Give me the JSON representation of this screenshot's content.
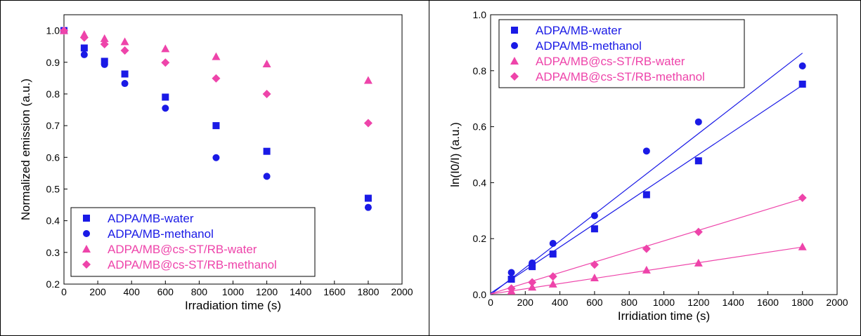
{
  "colors": {
    "blue": "#1a1ae6",
    "pink": "#ee44aa",
    "axis": "#000000"
  },
  "chart_data": [
    {
      "type": "scatter",
      "xlabel": "Irradiation time (s)",
      "ylabel": "Normalized emission (a.u.)",
      "xlim": [
        0,
        2000
      ],
      "ylim": [
        0.2,
        1.05
      ],
      "xticks": [
        0,
        200,
        400,
        600,
        800,
        1000,
        1200,
        1400,
        1600,
        1800,
        2000
      ],
      "yticks": [
        0.2,
        0.3,
        0.4,
        0.5,
        0.6,
        0.7,
        0.8,
        0.9,
        1.0
      ],
      "ytick_labels": [
        "0.2",
        "0.3",
        "0.4",
        "0.5",
        "0.6",
        "0.7",
        "0.8",
        "0.9",
        "1.0"
      ],
      "legend_position": "bottom-left",
      "series": [
        {
          "name": "ADPA/MB-water",
          "marker": "square",
          "color": "#1a1ae6",
          "x": [
            0,
            120,
            240,
            360,
            600,
            900,
            1200,
            1800
          ],
          "y": [
            1.0,
            0.945,
            0.903,
            0.863,
            0.79,
            0.7,
            0.619,
            0.471
          ]
        },
        {
          "name": "ADPA/MB-methanol",
          "marker": "circle",
          "color": "#1a1ae6",
          "x": [
            0,
            120,
            240,
            360,
            600,
            900,
            1200,
            1800
          ],
          "y": [
            1.0,
            0.924,
            0.893,
            0.833,
            0.755,
            0.599,
            0.54,
            0.442
          ]
        },
        {
          "name": "ADPA/MB@cs-ST/RB-water",
          "marker": "triangle",
          "color": "#ee44aa",
          "x": [
            0,
            120,
            240,
            360,
            600,
            900,
            1200,
            1800
          ],
          "y": [
            1.0,
            0.988,
            0.975,
            0.965,
            0.943,
            0.918,
            0.895,
            0.843
          ]
        },
        {
          "name": "ADPA/MB@cs-ST/RB-methanol",
          "marker": "diamond",
          "color": "#ee44aa",
          "x": [
            0,
            120,
            240,
            360,
            600,
            900,
            1200,
            1800
          ],
          "y": [
            1.0,
            0.978,
            0.957,
            0.937,
            0.899,
            0.849,
            0.8,
            0.708
          ]
        }
      ]
    },
    {
      "type": "scatter",
      "xlabel": "Irridiation time (s)",
      "ylabel": "ln(I0/I) (a.u.)",
      "xlim": [
        0,
        2000
      ],
      "ylim": [
        0,
        1.0
      ],
      "xticks": [
        0,
        200,
        400,
        600,
        800,
        1000,
        1200,
        1400,
        1600,
        1800,
        2000
      ],
      "yticks": [
        0,
        0.2,
        0.4,
        0.6,
        0.8,
        1.0
      ],
      "ytick_labels": [
        "0.0",
        "0.2",
        "0.4",
        "0.6",
        "0.8",
        "1.0"
      ],
      "legend_position": "top-left",
      "series": [
        {
          "name": "ADPA/MB-water",
          "marker": "square",
          "color": "#1a1ae6",
          "x": [
            120,
            240,
            360,
            600,
            900,
            1200,
            1800
          ],
          "y": [
            0.055,
            0.1,
            0.145,
            0.235,
            0.357,
            0.478,
            0.752
          ],
          "fit": [
            [
              0,
              0.005
            ],
            [
              1800,
              0.748
            ]
          ]
        },
        {
          "name": "ADPA/MB-methanol",
          "marker": "circle",
          "color": "#1a1ae6",
          "x": [
            120,
            240,
            360,
            600,
            900,
            1200,
            1800
          ],
          "y": [
            0.079,
            0.113,
            0.183,
            0.282,
            0.513,
            0.617,
            0.817
          ],
          "fit": [
            [
              0,
              0.0
            ],
            [
              1800,
              0.863
            ]
          ]
        },
        {
          "name": "ADPA/MB@cs-ST/RB-water",
          "marker": "triangle",
          "color": "#ee44aa",
          "x": [
            120,
            240,
            360,
            600,
            900,
            1200,
            1800
          ],
          "y": [
            0.013,
            0.027,
            0.038,
            0.06,
            0.088,
            0.113,
            0.171
          ],
          "fit": [
            [
              0,
              0.002
            ],
            [
              1800,
              0.17
            ]
          ]
        },
        {
          "name": "ADPA/MB@cs-ST/RB-methanol",
          "marker": "diamond",
          "color": "#ee44aa",
          "x": [
            120,
            240,
            360,
            600,
            900,
            1200,
            1800
          ],
          "y": [
            0.022,
            0.044,
            0.065,
            0.107,
            0.164,
            0.224,
            0.346
          ],
          "fit": [
            [
              0,
              0.003
            ],
            [
              1800,
              0.343
            ]
          ]
        }
      ]
    }
  ]
}
